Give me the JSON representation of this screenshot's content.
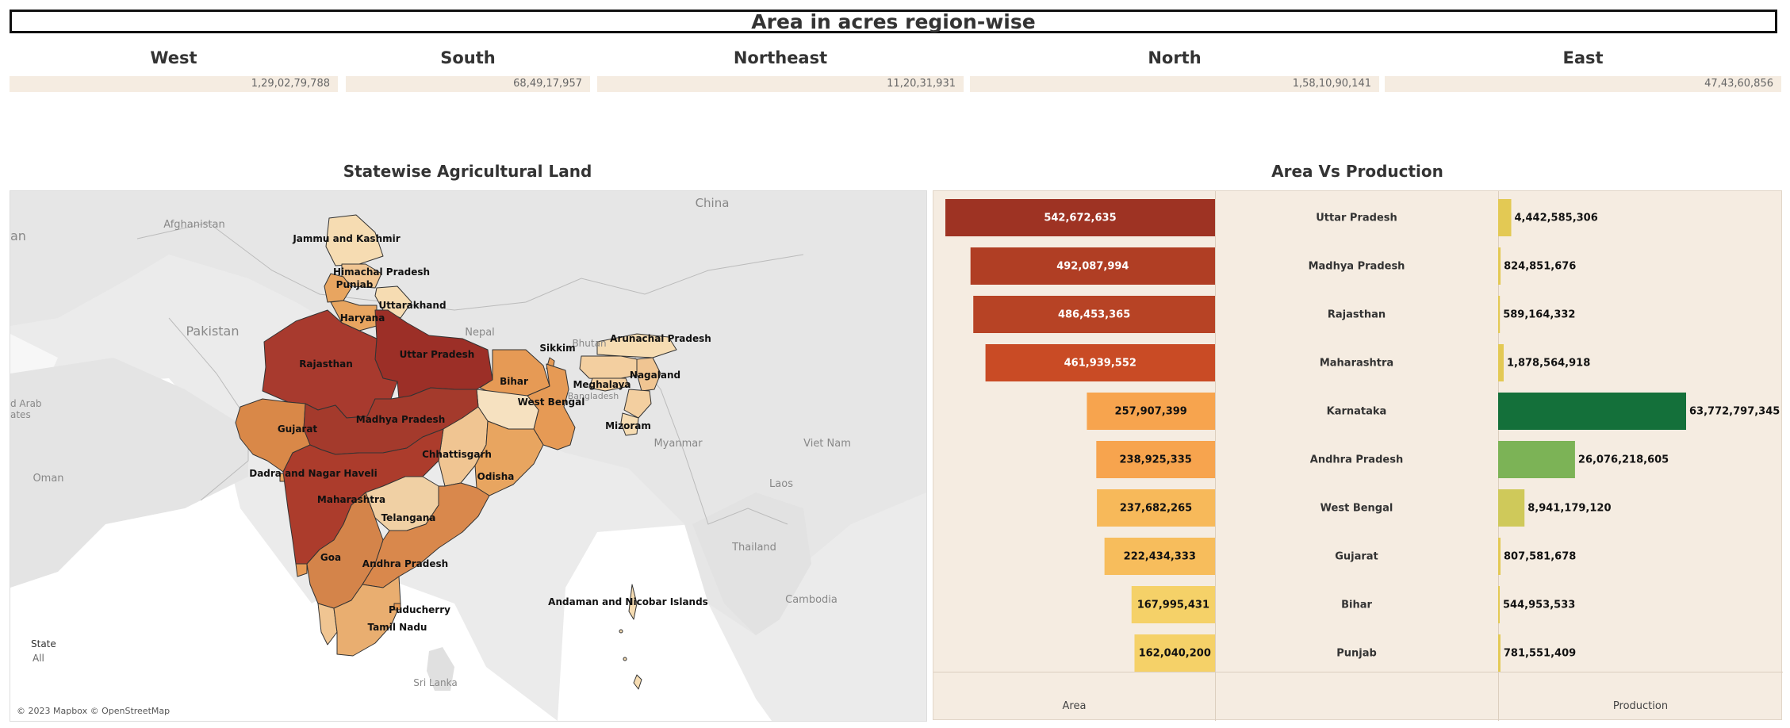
{
  "title": "Area in acres region-wise",
  "regions": [
    {
      "name": "West",
      "value": "1,29,02,79,788"
    },
    {
      "name": "South",
      "value": "68,49,17,957"
    },
    {
      "name": "Northeast",
      "value": "11,20,31,931"
    },
    {
      "name": "North",
      "value": "1,58,10,90,141"
    },
    {
      "name": "East",
      "value": "47,43,60,856"
    }
  ],
  "map": {
    "title": "Statewise Agricultural Land",
    "legend_title": "State",
    "legend_value": "All",
    "attribution": "© 2023 Mapbox © OpenStreetMap",
    "country_labels": [
      "China",
      "Afghanistan",
      "Pakistan",
      "Nepal",
      "Bhutan",
      "Bangladesh",
      "Myanmar",
      "Thailand",
      "Laos",
      "Viet Nam",
      "Cambodia",
      "Oman",
      "Sri Lanka",
      "an",
      "d Arab",
      "ates"
    ],
    "state_labels": [
      "Jammu and Kashmir",
      "Himachal Pradesh",
      "Punjab",
      "Uttarakhand",
      "Haryana",
      "Uttar Pradesh",
      "Rajasthan",
      "Bihar",
      "Sikkim",
      "Arunachal Pradesh",
      "Nagaland",
      "Meghalaya",
      "Mizoram",
      "West Bengal",
      "Gujarat",
      "Madhya Pradesh",
      "Chhattisgarh",
      "Odisha",
      "Dadra and Nagar Haveli",
      "Maharashtra",
      "Telangana",
      "Goa",
      "Andhra Pradesh",
      "Andaman and Nicobar Islands",
      "Puducherry",
      "Tamil Nadu"
    ]
  },
  "chart": {
    "title": "Area Vs Production",
    "area_axis_label": "Area",
    "production_axis_label": "Production"
  },
  "chart_data": {
    "type": "bar",
    "title": "Area Vs Production",
    "categories": [
      "Uttar Pradesh",
      "Madhya Pradesh",
      "Rajasthan",
      "Maharashtra",
      "Karnataka",
      "Andhra Pradesh",
      "West Bengal",
      "Gujarat",
      "Bihar",
      "Punjab"
    ],
    "series": [
      {
        "name": "Area",
        "values": [
          542672635,
          492087994,
          486453365,
          461939552,
          257907399,
          238925335,
          237682265,
          222434333,
          167995431,
          162040200
        ],
        "labels": [
          "542,672,635",
          "492,087,994",
          "486,453,365",
          "461,939,552",
          "257,907,399",
          "238,925,335",
          "237,682,265",
          "222,434,333",
          "167,995,431",
          "162,040,200"
        ],
        "colors": [
          "#9e3323",
          "#b03e24",
          "#b74325",
          "#c94b25",
          "#f7a44e",
          "#f7a44e",
          "#f7b95a",
          "#f7bd5c",
          "#f5d168",
          "#f5d168"
        ]
      },
      {
        "name": "Production",
        "values": [
          4442585306,
          824851676,
          589164332,
          1878564918,
          63772797345,
          26076218605,
          8941179120,
          807581678,
          544953533,
          781551409
        ],
        "labels": [
          "4,442,585,306",
          "824,851,676",
          "589,164,332",
          "1,878,564,918",
          "63,772,797,345",
          "26,076,218,605",
          "8,941,179,120",
          "807,581,678",
          "544,953,533",
          "781,551,409"
        ],
        "colors": [
          "#e3c954",
          "#e3c954",
          "#e3c954",
          "#e3c954",
          "#14703a",
          "#7cb356",
          "#cfc95a",
          "#e3c954",
          "#e3c954",
          "#e3c954"
        ]
      }
    ],
    "xlabel_area": "Area",
    "xlabel_production": "Production",
    "legend": "none"
  }
}
